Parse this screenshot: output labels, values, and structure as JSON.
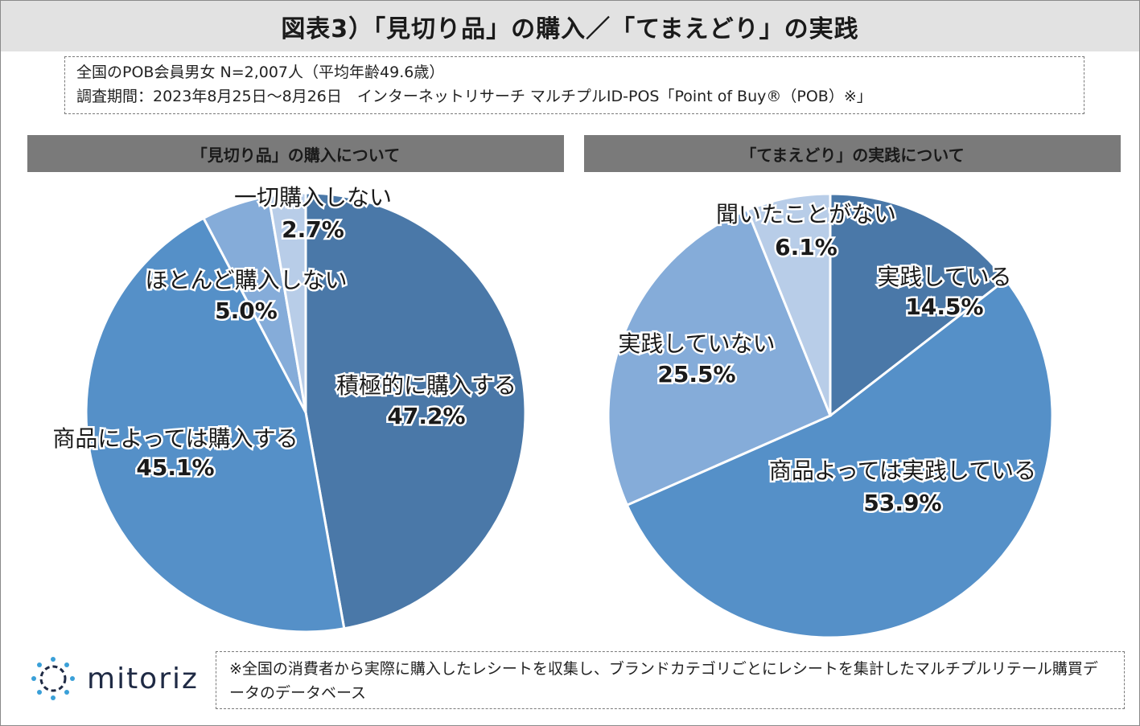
{
  "title": "図表3）「見切り品」の購入／「てまえどり」の実践",
  "info": {
    "line1": "全国のPOB会員男女 N=2,007人（平均年齢49.6歳）",
    "line2": "調査期間：2023年8月25日～8月26日　インターネットリサーチ マルチプルID-POS「Point of Buy®（POB）※」"
  },
  "footnote": "※全国の消費者から実際に購入したレシートを収集し、ブランドカテゴリごとにレシートを集計したマルチプルリテール購買データのデータベース",
  "logo": {
    "text": "mitoriz",
    "icon": "sun-burst-icon",
    "color": "#1f2a44"
  },
  "chart_data": [
    {
      "type": "pie",
      "title": "「見切り品」の購入について",
      "slices": [
        {
          "label": "積極的に購入する",
          "value": 47.2,
          "display": "47.2%",
          "color": "#4a78a8"
        },
        {
          "label": "商品によっては購入する",
          "value": 45.1,
          "display": "45.1%",
          "color": "#5590c8"
        },
        {
          "label": "ほとんど購入しない",
          "value": 5.0,
          "display": "5.0%",
          "color": "#85acd9"
        },
        {
          "label": "一切購入しない",
          "value": 2.7,
          "display": "2.7%",
          "color": "#b8cde8"
        }
      ]
    },
    {
      "type": "pie",
      "title": "「てまえどり」の実践について",
      "slices": [
        {
          "label": "実践している",
          "value": 14.5,
          "display": "14.5%",
          "color": "#4a78a8"
        },
        {
          "label": "商品よっては実践している",
          "value": 53.9,
          "display": "53.9%",
          "color": "#5590c8"
        },
        {
          "label": "実践していない",
          "value": 25.5,
          "display": "25.5%",
          "color": "#85acd9"
        },
        {
          "label": "聞いたことがない",
          "value": 6.1,
          "display": "6.1%",
          "color": "#b8cde8"
        }
      ]
    }
  ]
}
